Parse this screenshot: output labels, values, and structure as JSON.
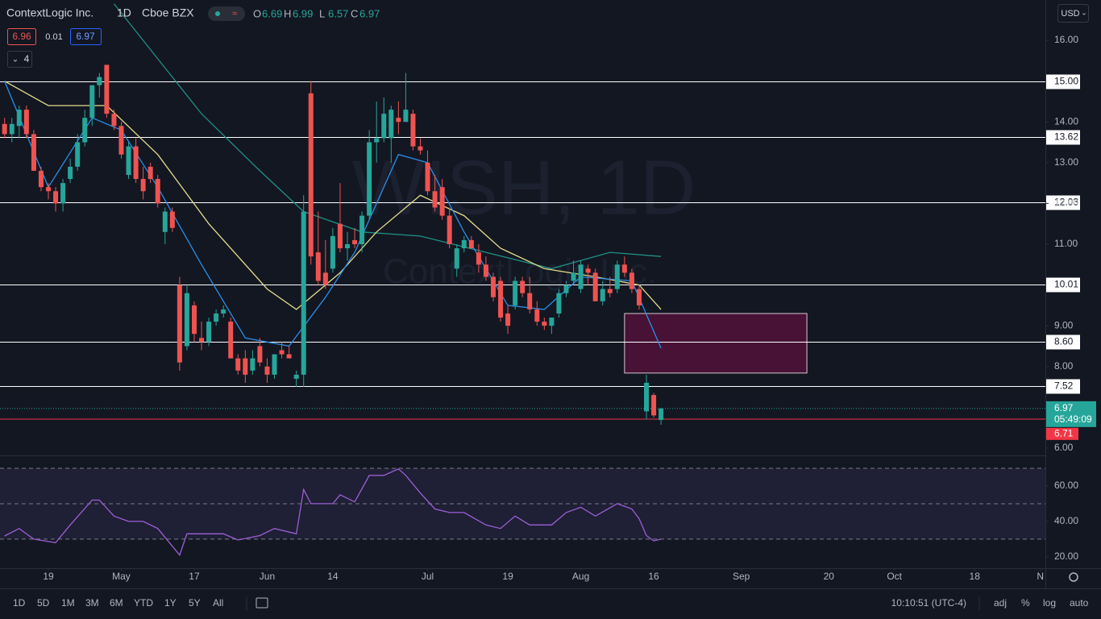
{
  "legend": {
    "symbol": "ContextLogic Inc.",
    "interval": "1D",
    "exchange": "Cboe BZX",
    "ohlc": [
      {
        "label": "O",
        "value": "6.69"
      },
      {
        "label": "H",
        "value": "6.99"
      },
      {
        "label": "L",
        "value": "6.57"
      },
      {
        "label": "C",
        "value": "6.97"
      }
    ]
  },
  "quote": {
    "bid": "6.96",
    "spread": "0.01",
    "ask": "6.97"
  },
  "indicator_count": "4",
  "currency": "USD",
  "toolbar": {
    "ranges": [
      "1D",
      "5D",
      "1M",
      "3M",
      "6M",
      "YTD",
      "1Y",
      "5Y",
      "All"
    ],
    "time": "10:10:51 (UTC-4)",
    "options": [
      "adj",
      "%",
      "log",
      "auto"
    ]
  },
  "chart_data": [
    {
      "type": "candlestick",
      "watermark": "WISH, 1D",
      "watermark_subtitle": "ContextLogic Inc.",
      "up_color": "#26a69a",
      "down_color": "#ef5350",
      "x": [
        0,
        1,
        2,
        3,
        4,
        5,
        6,
        7,
        8,
        9,
        10,
        11,
        12,
        13,
        14,
        15,
        16,
        17,
        18,
        19,
        20,
        21,
        22,
        23,
        24,
        25,
        26,
        27,
        28,
        29,
        30,
        31,
        32,
        33,
        34,
        35,
        36,
        37,
        38,
        39,
        40,
        41,
        42,
        43,
        44,
        45,
        46,
        47,
        48,
        49,
        50,
        51,
        52,
        53,
        54,
        55,
        56,
        57,
        58,
        59,
        60,
        61,
        62,
        63,
        64,
        65,
        66,
        67,
        68,
        69,
        70,
        71,
        72,
        73,
        74,
        75,
        76,
        77,
        78,
        79,
        80,
        81,
        82,
        83,
        84,
        85,
        86,
        87,
        88,
        89,
        90
      ],
      "open": [
        13.95,
        13.7,
        13.9,
        14.3,
        13.7,
        12.8,
        12.4,
        12.3,
        12.0,
        12.6,
        12.9,
        13.5,
        14.1,
        14.9,
        15.4,
        14.2,
        13.9,
        12.7,
        13.4,
        12.6,
        12.9,
        12.6,
        11.3,
        11.8,
        10.0,
        8.5,
        9.5,
        8.7,
        8.6,
        9.1,
        9.3,
        9.1,
        8.2,
        8.2,
        7.9,
        8.5,
        8.0,
        7.8,
        8.4,
        8.3,
        7.7,
        7.8,
        14.7,
        10.8,
        10.3,
        10.4,
        11.5,
        10.9,
        11.1,
        11.0,
        11.7,
        13.5,
        13.6,
        13.6,
        14.1,
        14.0,
        14.2,
        13.4,
        13.0,
        12.3,
        12.4,
        11.7,
        10.4,
        10.9,
        11.1,
        10.8,
        10.5,
        10.2,
        10.1,
        9.3,
        9.5,
        10.1,
        9.8,
        9.4,
        9.1,
        9.0,
        9.3,
        9.8,
        10.1,
        9.9,
        10.4,
        10.3,
        9.6,
        9.9,
        9.9,
        10.5,
        10.3,
        9.9,
        6.9,
        7.3,
        6.69
      ],
      "high": [
        14.1,
        14.1,
        14.4,
        14.4,
        13.8,
        12.9,
        12.5,
        12.4,
        12.6,
        13.1,
        13.7,
        14.3,
        14.9,
        15.2,
        15.4,
        14.3,
        14.0,
        13.5,
        13.6,
        12.9,
        13.0,
        12.7,
        11.9,
        11.9,
        10.2,
        10.0,
        9.6,
        9.1,
        9.2,
        9.4,
        9.5,
        9.2,
        8.3,
        8.4,
        8.4,
        8.7,
        8.2,
        8.3,
        8.6,
        8.5,
        7.9,
        12.2,
        15.0,
        11.8,
        11.1,
        11.4,
        12.5,
        11.3,
        11.4,
        11.8,
        13.8,
        14.5,
        14.6,
        14.4,
        14.5,
        15.2,
        14.3,
        13.6,
        13.3,
        12.7,
        12.6,
        11.9,
        11.0,
        11.2,
        11.2,
        11.0,
        10.7,
        10.3,
        10.2,
        9.5,
        10.2,
        10.2,
        10.2,
        9.6,
        9.2,
        9.2,
        9.9,
        10.1,
        10.6,
        10.6,
        10.5,
        10.4,
        10.1,
        10.2,
        10.6,
        10.7,
        10.4,
        10.0,
        7.8,
        7.35,
        6.99
      ],
      "low": [
        13.6,
        13.5,
        13.6,
        13.6,
        12.8,
        12.3,
        12.1,
        11.8,
        11.8,
        12.5,
        12.8,
        13.4,
        13.9,
        14.6,
        14.1,
        13.8,
        13.1,
        12.6,
        12.5,
        12.1,
        12.5,
        11.9,
        11.0,
        11.3,
        7.9,
        8.4,
        8.6,
        8.4,
        8.5,
        9.0,
        9.2,
        8.2,
        7.8,
        7.6,
        7.8,
        8.0,
        7.6,
        7.7,
        8.2,
        8.2,
        7.5,
        7.5,
        10.5,
        10.0,
        9.9,
        10.3,
        10.8,
        10.6,
        10.9,
        10.8,
        11.6,
        13.0,
        13.5,
        13.0,
        13.7,
        14.0,
        13.3,
        13.2,
        12.2,
        11.8,
        11.6,
        10.9,
        10.2,
        10.8,
        10.9,
        10.3,
        10.1,
        9.6,
        9.1,
        8.8,
        9.4,
        9.7,
        9.3,
        9.0,
        8.9,
        8.8,
        9.2,
        9.7,
        10.0,
        9.8,
        10.0,
        9.6,
        9.5,
        9.7,
        9.8,
        10.2,
        9.8,
        9.4,
        6.7,
        6.75,
        6.57
      ],
      "close": [
        13.7,
        13.95,
        14.3,
        13.7,
        12.8,
        12.4,
        12.3,
        12.0,
        12.5,
        12.9,
        13.5,
        14.1,
        14.9,
        15.1,
        14.2,
        13.9,
        13.2,
        13.4,
        12.6,
        12.3,
        12.6,
        12.0,
        11.8,
        11.4,
        8.1,
        9.8,
        8.8,
        8.6,
        9.1,
        9.3,
        9.4,
        8.2,
        7.9,
        7.8,
        8.2,
        8.1,
        7.8,
        8.3,
        8.3,
        8.2,
        7.8,
        11.8,
        10.7,
        10.1,
        10.0,
        11.2,
        10.9,
        11.0,
        11.0,
        11.7,
        13.5,
        13.6,
        14.2,
        14.3,
        14.0,
        14.3,
        13.4,
        13.3,
        12.3,
        11.9,
        11.7,
        11.0,
        10.9,
        11.1,
        10.9,
        10.5,
        10.2,
        9.7,
        9.2,
        9.0,
        10.1,
        9.8,
        9.4,
        9.1,
        9.0,
        9.2,
        9.8,
        10.0,
        10.3,
        10.5,
        10.3,
        9.6,
        9.9,
        9.8,
        10.5,
        10.3,
        9.9,
        9.5,
        7.6,
        6.8,
        6.97
      ],
      "overlays": [
        {
          "color": "#1f8f86",
          "x": [
            15,
            27,
            35,
            41,
            49,
            57,
            66,
            75,
            83,
            90
          ],
          "values": [
            16.9,
            14.2,
            12.8,
            11.8,
            11.3,
            11.2,
            10.8,
            10.4,
            10.8,
            10.7
          ]
        },
        {
          "color": "#e3dc8a",
          "x": [
            0,
            6,
            14,
            21,
            28,
            36,
            40,
            46,
            51,
            57,
            63,
            68,
            74,
            81,
            87,
            90
          ],
          "values": [
            15.0,
            14.4,
            14.4,
            13.2,
            11.5,
            9.9,
            9.4,
            10.3,
            11.3,
            12.2,
            11.7,
            10.9,
            10.4,
            10.2,
            10.0,
            9.4
          ]
        },
        {
          "color": "#2a8ee6",
          "x": [
            0,
            6,
            12,
            16,
            21,
            27,
            33,
            39,
            44,
            48,
            54,
            58,
            63,
            69,
            74,
            79,
            86,
            90
          ],
          "values": [
            15.0,
            12.4,
            14.1,
            13.8,
            12.4,
            10.5,
            8.7,
            8.5,
            9.7,
            10.8,
            13.2,
            13.0,
            11.3,
            9.5,
            9.4,
            10.2,
            10.1,
            8.45
          ]
        }
      ],
      "levels": [
        {
          "value": 15,
          "label": "15.00"
        },
        {
          "value": 13.62,
          "label": "13.62"
        },
        {
          "value": 12.03,
          "label": "12.03"
        },
        {
          "value": 10.01,
          "label": "10.01"
        },
        {
          "value": 8.6,
          "label": "8.60"
        },
        {
          "value": 7.52,
          "label": "7.52"
        }
      ],
      "box": {
        "x": [
          85,
          110
        ],
        "y": [
          7.84,
          9.3
        ],
        "color": "#880e4f"
      },
      "last_price": {
        "value": 6.97,
        "label": "6.97",
        "countdown": "05:49:09",
        "color": "#26a69a"
      },
      "price_line": {
        "value": 6.71,
        "label": "6.71",
        "color": "#f23645"
      },
      "xlim": [
        -0.63,
        142.7
      ],
      "ylim": [
        5.82,
        16.99
      ],
      "yticks": [
        {
          "value": 16,
          "label": "16.00"
        },
        {
          "value": 14,
          "label": "14.00"
        },
        {
          "value": 13,
          "label": "13.00"
        },
        {
          "value": 12,
          "label": "12.00"
        },
        {
          "value": 11,
          "label": "11.00"
        },
        {
          "value": 9,
          "label": "9.00"
        },
        {
          "value": 8,
          "label": "8.00"
        },
        {
          "value": 6,
          "label": "6.00"
        }
      ],
      "xticks": [
        {
          "value": 6,
          "label": "19"
        },
        {
          "value": 16,
          "label": "May"
        },
        {
          "value": 26,
          "label": "17"
        },
        {
          "value": 36,
          "label": "Jun"
        },
        {
          "value": 45,
          "label": "14"
        },
        {
          "value": 58,
          "label": "Jul"
        },
        {
          "value": 69,
          "label": "19"
        },
        {
          "value": 79,
          "label": "Aug"
        },
        {
          "value": 89,
          "label": "16"
        },
        {
          "value": 101,
          "label": "Sep"
        },
        {
          "value": 113,
          "label": "20"
        },
        {
          "value": 122,
          "label": "Oct"
        },
        {
          "value": 133,
          "label": "18"
        },
        {
          "value": 142,
          "label": "N"
        }
      ]
    },
    {
      "type": "line",
      "color": "#9c5fd6",
      "x": [
        0,
        2,
        4,
        7,
        9,
        12,
        13,
        15,
        17,
        19,
        21,
        24,
        25,
        28,
        30,
        32,
        35,
        37,
        40,
        41,
        42,
        45,
        46,
        48,
        50,
        52,
        54,
        55,
        57,
        59,
        61,
        63,
        66,
        68,
        70,
        72,
        75,
        77,
        79,
        81,
        84,
        86,
        87,
        88,
        89,
        90
      ],
      "values": [
        31.8,
        36,
        30,
        28,
        38,
        52,
        52,
        43,
        40,
        40,
        36,
        21,
        33,
        33,
        33,
        29.5,
        32,
        36,
        33,
        58,
        50,
        50,
        55,
        51,
        66,
        66,
        69.6,
        66,
        56,
        47,
        45,
        45,
        38,
        36,
        43,
        38,
        38,
        45,
        48,
        43,
        50,
        47,
        41.5,
        32,
        29,
        30
      ],
      "bands": [
        70,
        50,
        30
      ],
      "ylim": [
        13.6,
        76.8
      ],
      "yticks": [
        {
          "value": 60,
          "label": "60.00"
        },
        {
          "value": 40,
          "label": "40.00"
        },
        {
          "value": 20,
          "label": "20.00"
        }
      ]
    }
  ]
}
